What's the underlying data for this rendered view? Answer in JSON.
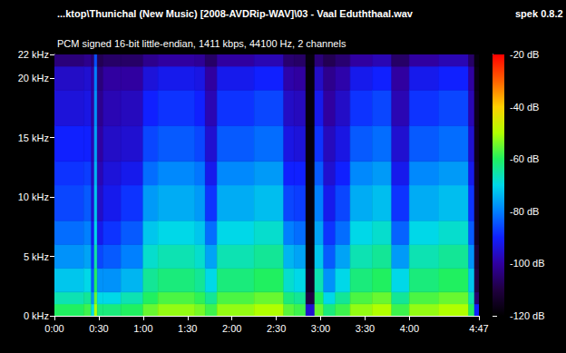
{
  "chart_data": {
    "type": "heatmap",
    "title": "...ktop\\Thunichal (New Music) [2008-AVDRip-WAV]\\03 - Vaal Eduththaal.wav",
    "subtitle": "PCM signed 16-bit little-endian, 1411 kbps, 44100 Hz, 2 channels",
    "annotations": [
      "spek 0.8.2"
    ],
    "xlim": [
      0,
      287
    ],
    "xticks": [
      {
        "value": 0,
        "label": "0:00"
      },
      {
        "value": 30,
        "label": "0:30"
      },
      {
        "value": 60,
        "label": "1:00"
      },
      {
        "value": 90,
        "label": "1:30"
      },
      {
        "value": 120,
        "label": "2:00"
      },
      {
        "value": 150,
        "label": "2:30"
      },
      {
        "value": 180,
        "label": "3:00"
      },
      {
        "value": 210,
        "label": "3:30"
      },
      {
        "value": 240,
        "label": "4:00"
      },
      {
        "value": 287,
        "label": "4:47"
      }
    ],
    "ylim": [
      0,
      22
    ],
    "yticks": [
      {
        "value": 0,
        "label": "0 kHz"
      },
      {
        "value": 5,
        "label": "5 kHz"
      },
      {
        "value": 10,
        "label": "10 kHz"
      },
      {
        "value": 15,
        "label": "15 kHz"
      },
      {
        "value": 20,
        "label": "20 kHz"
      },
      {
        "value": 22,
        "label": "22 kHz"
      }
    ],
    "grid": false,
    "x_bins": [
      0,
      20,
      25,
      27,
      29,
      33,
      45,
      60,
      70,
      95,
      102,
      110,
      135,
      155,
      162,
      170,
      176,
      182,
      190,
      200,
      215,
      228,
      240,
      260,
      280,
      284,
      287
    ],
    "y_bins": [
      0,
      1,
      2,
      4,
      6,
      8,
      11,
      13,
      16,
      19,
      21,
      22
    ],
    "cells": [
      [
        -60,
        -66,
        -72,
        -78,
        -82,
        -86,
        -88,
        -90,
        -94,
        -96,
        -104
      ],
      [
        -58,
        -64,
        -70,
        -76,
        -80,
        -84,
        -87,
        -90,
        -93,
        -95,
        -102
      ],
      [
        -70,
        -78,
        -84,
        -88,
        -92,
        -95,
        -97,
        -98,
        -100,
        -100,
        -105
      ],
      [
        -50,
        -55,
        -60,
        -65,
        -70,
        -72,
        -74,
        -76,
        -78,
        -80,
        -85
      ],
      [
        -62,
        -70,
        -78,
        -86,
        -92,
        -96,
        -98,
        -100,
        -102,
        -104,
        -108
      ],
      [
        -62,
        -70,
        -78,
        -84,
        -88,
        -92,
        -94,
        -96,
        -98,
        -100,
        -106
      ],
      [
        -60,
        -66,
        -74,
        -80,
        -84,
        -88,
        -92,
        -95,
        -97,
        -100,
        -106
      ],
      [
        -55,
        -60,
        -64,
        -68,
        -72,
        -77,
        -82,
        -86,
        -90,
        -94,
        -102
      ],
      [
        -52,
        -57,
        -62,
        -66,
        -70,
        -75,
        -79,
        -84,
        -88,
        -92,
        -100
      ],
      [
        -54,
        -59,
        -64,
        -68,
        -72,
        -77,
        -81,
        -86,
        -90,
        -93,
        -101
      ],
      [
        -58,
        -64,
        -70,
        -76,
        -82,
        -88,
        -92,
        -95,
        -98,
        -100,
        -106
      ],
      [
        -52,
        -57,
        -62,
        -66,
        -70,
        -75,
        -79,
        -84,
        -88,
        -92,
        -100
      ],
      [
        -50,
        -55,
        -60,
        -64,
        -68,
        -73,
        -77,
        -82,
        -86,
        -90,
        -98
      ],
      [
        -56,
        -62,
        -68,
        -74,
        -80,
        -86,
        -90,
        -93,
        -96,
        -99,
        -105
      ],
      [
        -58,
        -64,
        -70,
        -76,
        -82,
        -87,
        -90,
        -94,
        -97,
        -100,
        -106
      ],
      [
        -95,
        -110,
        -115,
        -118,
        -118,
        -118,
        -118,
        -118,
        -118,
        -118,
        -118
      ],
      [
        -55,
        -60,
        -66,
        -72,
        -76,
        -80,
        -84,
        -88,
        -92,
        -96,
        -104
      ],
      [
        -62,
        -70,
        -78,
        -84,
        -88,
        -92,
        -95,
        -97,
        -100,
        -102,
        -108
      ],
      [
        -58,
        -64,
        -70,
        -76,
        -82,
        -86,
        -90,
        -93,
        -96,
        -99,
        -105
      ],
      [
        -52,
        -57,
        -62,
        -66,
        -70,
        -75,
        -79,
        -84,
        -88,
        -92,
        -100
      ],
      [
        -50,
        -55,
        -60,
        -64,
        -68,
        -73,
        -77,
        -82,
        -86,
        -90,
        -98
      ],
      [
        -58,
        -64,
        -70,
        -77,
        -83,
        -88,
        -92,
        -95,
        -98,
        -100,
        -106
      ],
      [
        -52,
        -57,
        -62,
        -66,
        -70,
        -75,
        -79,
        -84,
        -88,
        -92,
        -100
      ],
      [
        -50,
        -55,
        -60,
        -64,
        -68,
        -73,
        -77,
        -82,
        -86,
        -90,
        -98
      ],
      [
        -60,
        -66,
        -72,
        -78,
        -84,
        -88,
        -92,
        -95,
        -98,
        -100,
        -106
      ],
      [
        -90,
        -105,
        -110,
        -112,
        -115,
        -115,
        -115,
        -116,
        -116,
        -117,
        -118
      ]
    ],
    "colorbar": {
      "lim": [
        -120,
        -20
      ],
      "ticks": [
        {
          "value": -120,
          "label": "-120 dB"
        },
        {
          "value": -100,
          "label": "-100 dB"
        },
        {
          "value": -80,
          "label": "-80 dB"
        },
        {
          "value": -60,
          "label": "-60 dB"
        },
        {
          "value": -40,
          "label": "-40 dB"
        },
        {
          "value": -20,
          "label": "-20 dB"
        }
      ]
    }
  }
}
